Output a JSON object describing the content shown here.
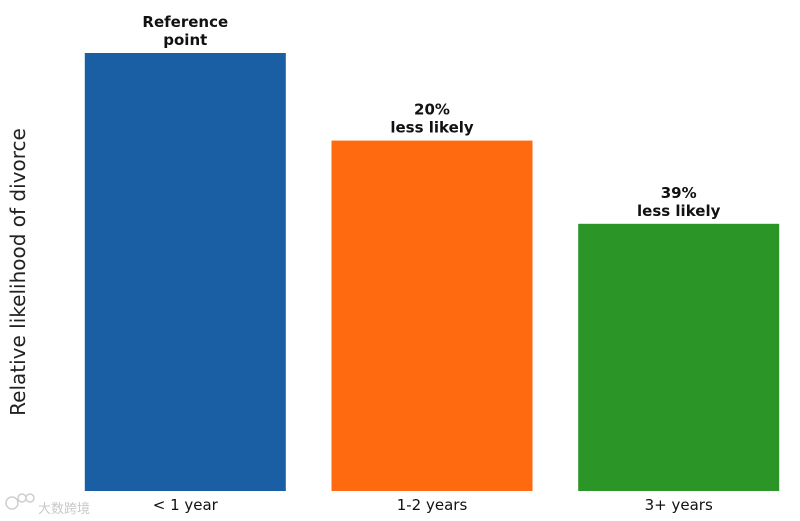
{
  "chart_data": {
    "type": "bar",
    "title": "",
    "xlabel": "",
    "ylabel": "Relative likelihood of divorce",
    "categories": [
      "< 1 year",
      "1-2 years",
      "3+ years"
    ],
    "values": [
      1.0,
      0.8,
      0.61
    ],
    "ylim": [
      0,
      1.0
    ],
    "grid": false,
    "bar_labels": [
      [
        "Reference",
        "point"
      ],
      [
        "20%",
        "less likely"
      ],
      [
        "39%",
        "less likely"
      ]
    ],
    "colors": [
      "#1a5fa3",
      "#ff6a10",
      "#2b9527"
    ]
  },
  "watermark": {
    "text": "大数跨境",
    "icon": "logo-icon"
  }
}
